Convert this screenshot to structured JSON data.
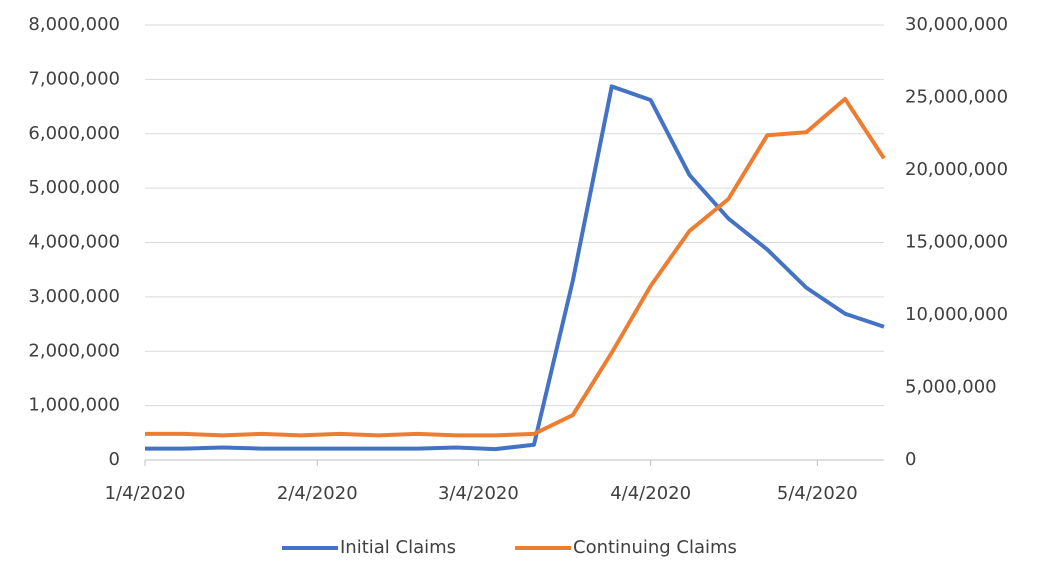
{
  "chart_data": {
    "type": "line",
    "x": [
      "1/4/2020",
      "1/11/2020",
      "1/18/2020",
      "1/25/2020",
      "2/1/2020",
      "2/8/2020",
      "2/15/2020",
      "2/22/2020",
      "2/29/2020",
      "3/7/2020",
      "3/14/2020",
      "3/21/2020",
      "3/28/2020",
      "4/4/2020",
      "4/11/2020",
      "4/18/2020",
      "4/25/2020",
      "5/2/2020",
      "5/9/2020",
      "5/16/2020"
    ],
    "series": [
      {
        "name": "Initial Claims",
        "color": "#4472c4",
        "values": [
          210000,
          210000,
          230000,
          210000,
          210000,
          210000,
          210000,
          210000,
          230000,
          200000,
          280000,
          3300000,
          6870000,
          6620000,
          5240000,
          4440000,
          3870000,
          3170000,
          2690000,
          2450000
        ]
      },
      {
        "name": "Continuing Claims",
        "color": "#ed7d31",
        "axis": "y2",
        "values": [
          1800000,
          1800000,
          1700000,
          1800000,
          1700000,
          1800000,
          1700000,
          1800000,
          1700000,
          1700000,
          1800000,
          3100000,
          7400000,
          12000000,
          15800000,
          18000000,
          22400000,
          22600000,
          24900000,
          20800000
        ]
      }
    ],
    "xlim": [
      "1/4/2020",
      "5/16/2020"
    ],
    "xticks": [
      "1/4/2020",
      "2/4/2020",
      "3/4/2020",
      "4/4/2020",
      "5/4/2020"
    ],
    "ylim": [
      0,
      8000000
    ],
    "yticks": [
      0,
      {
        "value": 1000000,
        "label": "1,000,000"
      },
      {
        "value": 2000000,
        "label": "2,000,000"
      },
      {
        "value": 3000000,
        "label": "3,000,000"
      },
      {
        "value": 4000000,
        "label": "4,000,000"
      },
      {
        "value": 5000000,
        "label": "5,000,000"
      },
      {
        "value": 6000000,
        "label": "6,000,000"
      },
      {
        "value": 7000000,
        "label": "7,000,000"
      },
      {
        "value": 8000000,
        "label": "8,000,000"
      }
    ],
    "y2lim": [
      0,
      30000000
    ],
    "y2ticks": [
      0,
      {
        "value": 5000000,
        "label": "5,000,000"
      },
      {
        "value": 10000000,
        "label": "10,000,000"
      },
      {
        "value": 15000000,
        "label": "15,000,000"
      },
      {
        "value": 20000000,
        "label": "20,000,000"
      },
      {
        "value": 25000000,
        "label": "25,000,000"
      },
      {
        "value": 30000000,
        "label": "30,000,000"
      }
    ],
    "grid": true,
    "legend": "bottom"
  }
}
